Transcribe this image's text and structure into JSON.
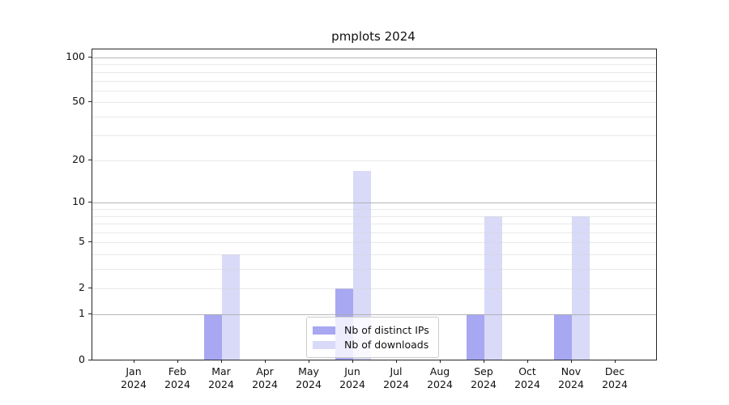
{
  "chart_data": {
    "type": "bar",
    "title": "pmplots 2024",
    "categories": [
      "Jan",
      "Feb",
      "Mar",
      "Apr",
      "May",
      "Jun",
      "Jul",
      "Aug",
      "Sep",
      "Oct",
      "Nov",
      "Dec"
    ],
    "category_year": "2024",
    "series": [
      {
        "name": "Nb of distinct IPs",
        "color": "#a7a7f2",
        "values": [
          0,
          0,
          1,
          0,
          0,
          2,
          0,
          0,
          1,
          0,
          1,
          0
        ]
      },
      {
        "name": "Nb of downloads",
        "color": "#d9d9f8",
        "values": [
          0,
          0,
          4,
          0,
          0,
          17,
          0,
          0,
          8,
          0,
          8,
          0
        ]
      }
    ],
    "y_ticks": [
      0,
      1,
      2,
      5,
      10,
      20,
      50,
      100
    ],
    "y_tick_labels": [
      "0",
      "1",
      "2",
      "5",
      "10",
      "20",
      "50",
      "100"
    ],
    "y_major_gridlines": [
      1,
      10,
      100
    ],
    "y_minor_gridlines": [
      2,
      3,
      4,
      5,
      6,
      7,
      8,
      9,
      20,
      30,
      40,
      50,
      60,
      70,
      80,
      90
    ],
    "scale": "log1p",
    "ylim": [
      0,
      113
    ],
    "grid": true,
    "legend_position": "lower center"
  }
}
